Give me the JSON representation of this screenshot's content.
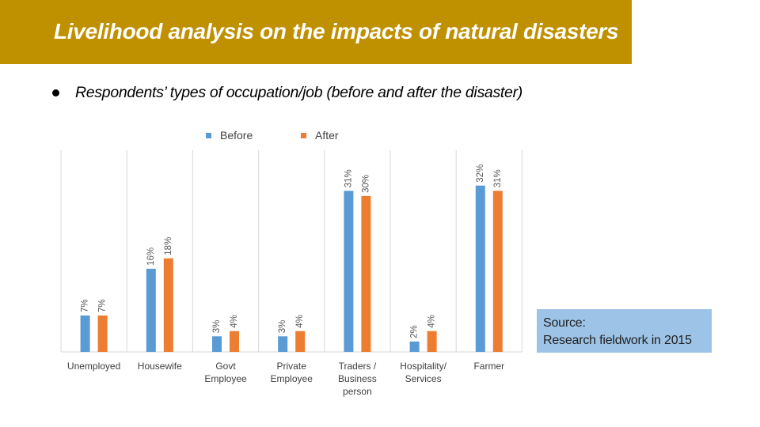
{
  "header": {
    "title": "Livelihood analysis on the impacts of natural disasters"
  },
  "bullet": {
    "text": "Respondents’ types of occupation/job (before and after the disaster)"
  },
  "source": {
    "line1": "Source:",
    "line2": "Research fieldwork in 2015"
  },
  "colors": {
    "banner": "#bf9000",
    "before": "#5b9bd5",
    "after": "#ed7d31",
    "source_box": "#9dc3e6"
  },
  "chart_data": {
    "type": "bar",
    "categories": [
      [
        "Unemployed"
      ],
      [
        "Housewife"
      ],
      [
        "Govt",
        "Employee"
      ],
      [
        "Private",
        "Employee"
      ],
      [
        "Traders /",
        "Business",
        "person"
      ],
      [
        "Hospitality/",
        "Services"
      ],
      [
        "Farmer"
      ]
    ],
    "series": [
      {
        "name": "Before",
        "values": [
          7,
          16,
          3,
          3,
          31,
          2,
          32
        ],
        "labels": [
          "7%",
          "16%",
          "3%",
          "3%",
          "31%",
          "2%",
          "32%"
        ]
      },
      {
        "name": "After",
        "values": [
          7,
          18,
          4,
          4,
          30,
          4,
          31
        ],
        "labels": [
          "7%",
          "18%",
          "4%",
          "4%",
          "30%",
          "4%",
          "31%"
        ]
      }
    ],
    "ylim": [
      0,
      35
    ],
    "legend": "top",
    "grid": false
  }
}
